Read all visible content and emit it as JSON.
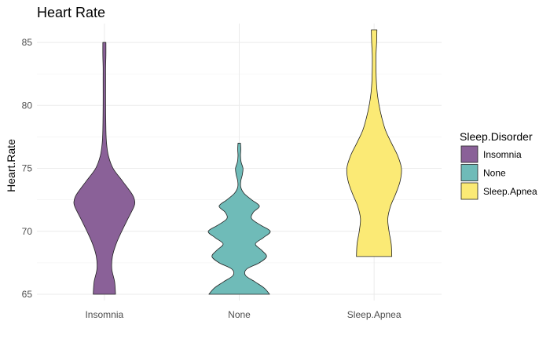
{
  "chart_data": {
    "type": "violin",
    "title": "Heart Rate",
    "xlabel": "",
    "ylabel": "Heart.Rate",
    "categories": [
      "Insomnia",
      "None",
      "Sleep.Apnea"
    ],
    "ylim": [
      64.5,
      86.5
    ],
    "yticks": [
      65,
      70,
      75,
      80,
      85
    ],
    "ytick_labels": [
      "65",
      "70",
      "75",
      "80",
      "85"
    ],
    "legend": {
      "title": "Sleep.Disorder",
      "position": "right",
      "entries": [
        "Insomnia",
        "None",
        "Sleep.Apnea"
      ]
    },
    "colors": {
      "Insomnia": "#8a6198",
      "None": "#6fbbb8",
      "Sleep.Apnea": "#fbea75",
      "outline": "#222222"
    },
    "grid": true,
    "series": [
      {
        "name": "Insomnia",
        "y_range": [
          65,
          85
        ],
        "density": [
          [
            65.0,
            0.36
          ],
          [
            66.0,
            0.33
          ],
          [
            67.0,
            0.24
          ],
          [
            68.0,
            0.26
          ],
          [
            69.0,
            0.38
          ],
          [
            70.0,
            0.56
          ],
          [
            71.0,
            0.76
          ],
          [
            72.0,
            0.96
          ],
          [
            72.5,
            0.97
          ],
          [
            73.0,
            0.88
          ],
          [
            74.0,
            0.58
          ],
          [
            75.0,
            0.28
          ],
          [
            76.0,
            0.13
          ],
          [
            77.0,
            0.07
          ],
          [
            78.0,
            0.05
          ],
          [
            80.0,
            0.04
          ],
          [
            82.0,
            0.04
          ],
          [
            83.0,
            0.04
          ],
          [
            84.0,
            0.05
          ],
          [
            85.0,
            0.05
          ]
        ]
      },
      {
        "name": "None",
        "y_range": [
          65,
          77
        ],
        "density": [
          [
            65.0,
            0.98
          ],
          [
            65.5,
            0.8
          ],
          [
            66.0,
            0.5
          ],
          [
            66.5,
            0.2
          ],
          [
            67.0,
            0.24
          ],
          [
            67.5,
            0.65
          ],
          [
            68.0,
            0.88
          ],
          [
            68.5,
            0.72
          ],
          [
            69.0,
            0.52
          ],
          [
            69.5,
            0.78
          ],
          [
            70.0,
            1.0
          ],
          [
            70.5,
            0.68
          ],
          [
            71.0,
            0.4
          ],
          [
            71.5,
            0.45
          ],
          [
            72.0,
            0.65
          ],
          [
            72.5,
            0.4
          ],
          [
            73.0,
            0.16
          ],
          [
            73.5,
            0.05
          ],
          [
            74.0,
            0.05
          ],
          [
            74.5,
            0.1
          ],
          [
            75.0,
            0.12
          ],
          [
            75.5,
            0.06
          ],
          [
            76.0,
            0.04
          ],
          [
            76.5,
            0.05
          ],
          [
            77.0,
            0.04
          ]
        ]
      },
      {
        "name": "Sleep.Apnea",
        "y_range": [
          68,
          86
        ],
        "density": [
          [
            68.0,
            0.57
          ],
          [
            69.0,
            0.55
          ],
          [
            70.0,
            0.48
          ],
          [
            71.0,
            0.44
          ],
          [
            72.0,
            0.53
          ],
          [
            73.0,
            0.7
          ],
          [
            74.0,
            0.84
          ],
          [
            75.0,
            0.88
          ],
          [
            76.0,
            0.76
          ],
          [
            77.0,
            0.56
          ],
          [
            78.0,
            0.37
          ],
          [
            79.0,
            0.25
          ],
          [
            80.0,
            0.16
          ],
          [
            81.0,
            0.1
          ],
          [
            82.0,
            0.07
          ],
          [
            83.0,
            0.06
          ],
          [
            84.0,
            0.06
          ],
          [
            85.0,
            0.08
          ],
          [
            86.0,
            0.09
          ]
        ]
      }
    ]
  }
}
